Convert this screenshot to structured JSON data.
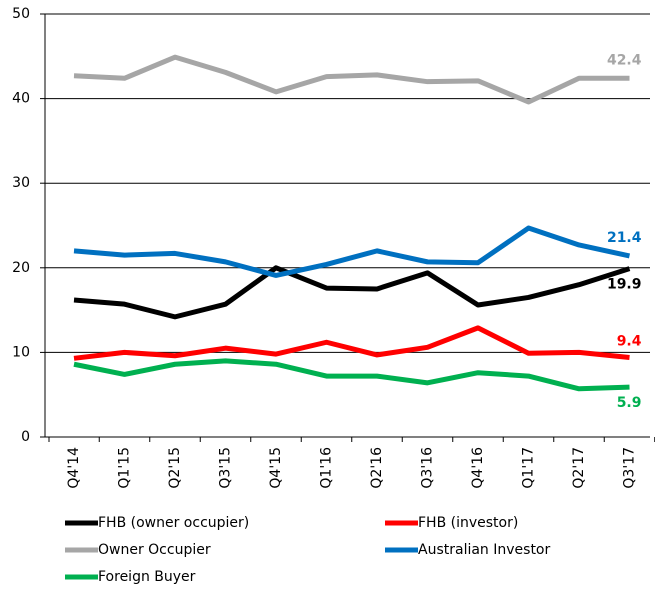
{
  "chart_data": {
    "type": "line",
    "categories": [
      "Q4'14",
      "Q1'15",
      "Q2'15",
      "Q3'15",
      "Q4'15",
      "Q1'16",
      "Q2'16",
      "Q3'16",
      "Q4'16",
      "Q1'17",
      "Q2'17",
      "Q3'17"
    ],
    "series": [
      {
        "name": "FHB (owner occupier)",
        "color": "#000000",
        "values": [
          16.2,
          15.7,
          14.2,
          15.7,
          20.0,
          17.6,
          17.5,
          19.4,
          15.6,
          16.5,
          18.0,
          19.9
        ]
      },
      {
        "name": "FHB (investor)",
        "color": "#ff0000",
        "values": [
          9.3,
          10.0,
          9.6,
          10.5,
          9.8,
          11.2,
          9.7,
          10.6,
          12.9,
          9.9,
          10.0,
          9.4
        ]
      },
      {
        "name": "Owner Occupier",
        "color": "#a6a6a6",
        "values": [
          42.7,
          42.4,
          44.9,
          43.1,
          40.8,
          42.6,
          42.8,
          42.0,
          42.1,
          39.6,
          42.4,
          42.4
        ]
      },
      {
        "name": "Australian Investor",
        "color": "#0070c0",
        "values": [
          22.0,
          21.5,
          21.7,
          20.7,
          19.1,
          20.4,
          22.0,
          20.7,
          20.6,
          24.7,
          22.7,
          21.4
        ]
      },
      {
        "name": "Foreign Buyer",
        "color": "#00b050",
        "values": [
          8.6,
          7.4,
          8.6,
          9.0,
          8.6,
          7.2,
          7.2,
          6.4,
          7.6,
          7.2,
          5.7,
          5.9
        ]
      }
    ],
    "ylim": [
      0,
      50
    ],
    "yticks": [
      0,
      10,
      20,
      30,
      40,
      50
    ],
    "grid": true
  }
}
